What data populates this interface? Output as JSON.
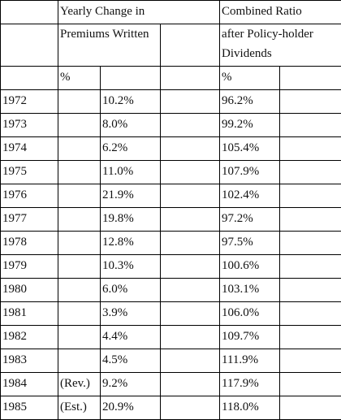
{
  "header": {
    "group1": "Yearly Change in",
    "group2": "Combined Ratio",
    "sub1": "Premiums Written",
    "sub2": "after Policy-holder Dividends",
    "unit1": "%",
    "unit2": "%"
  },
  "rows": [
    {
      "year": "1972",
      "note": "",
      "premiums": "10.2%",
      "ratio": "96.2%"
    },
    {
      "year": "1973",
      "note": "",
      "premiums": "8.0%",
      "ratio": "99.2%"
    },
    {
      "year": "1974",
      "note": "",
      "premiums": "6.2%",
      "ratio": "105.4%"
    },
    {
      "year": "1975",
      "note": "",
      "premiums": "11.0%",
      "ratio": "107.9%"
    },
    {
      "year": "1976",
      "note": "",
      "premiums": "21.9%",
      "ratio": "102.4%"
    },
    {
      "year": "1977",
      "note": "",
      "premiums": "19.8%",
      "ratio": "97.2%"
    },
    {
      "year": "1978",
      "note": "",
      "premiums": "12.8%",
      "ratio": "97.5%"
    },
    {
      "year": "1979",
      "note": "",
      "premiums": "10.3%",
      "ratio": "100.6%"
    },
    {
      "year": "1980",
      "note": "",
      "premiums": "6.0%",
      "ratio": "103.1%"
    },
    {
      "year": "1981",
      "note": "",
      "premiums": "3.9%",
      "ratio": "106.0%"
    },
    {
      "year": "1982",
      "note": "",
      "premiums": "4.4%",
      "ratio": "109.7%"
    },
    {
      "year": "1983",
      "note": "",
      "premiums": "4.5%",
      "ratio": "111.9%"
    },
    {
      "year": "1984",
      "note": "(Rev.)",
      "premiums": "9.2%",
      "ratio": "117.9%"
    },
    {
      "year": "1985",
      "note": "(Est.)",
      "premiums": "20.9%",
      "ratio": "118.0%"
    }
  ]
}
